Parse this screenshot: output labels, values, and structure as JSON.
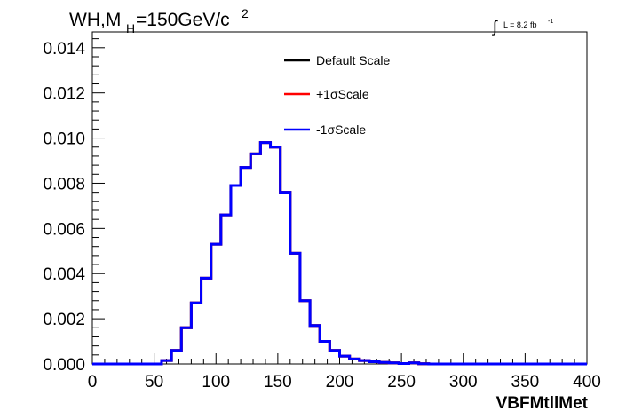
{
  "chart_data": {
    "type": "line",
    "title": {
      "main": "WH,M",
      "sub": "H",
      "rest": "=150GeV/c",
      "sup": "2"
    },
    "lumi": {
      "integral": "∫",
      "text": "L = 8.2 fb",
      "sup": "-1"
    },
    "xlabel": "VBFMtllMet",
    "ylabel": "",
    "xlim": [
      0,
      400
    ],
    "ylim": [
      0,
      0.0147
    ],
    "grid": false,
    "legend_position": "top-center",
    "xticks": [
      0,
      50,
      100,
      150,
      200,
      250,
      300,
      350,
      400
    ],
    "xtick_labels": [
      "0",
      "50",
      "100",
      "150",
      "200",
      "250",
      "300",
      "350",
      "400"
    ],
    "yticks": [
      0.0,
      0.002,
      0.004,
      0.006,
      0.008,
      0.01,
      0.012,
      0.014
    ],
    "ytick_labels": [
      "0.000",
      "0.002",
      "0.004",
      "0.006",
      "0.008",
      "0.010",
      "0.012",
      "0.014"
    ],
    "bin_edges": [
      0,
      8,
      16,
      24,
      32,
      40,
      48,
      56,
      64,
      72,
      80,
      88,
      96,
      104,
      112,
      120,
      128,
      136,
      144,
      152,
      160,
      168,
      176,
      184,
      192,
      200,
      208,
      216,
      224,
      232,
      240,
      248,
      256,
      264,
      272,
      280,
      288,
      296,
      304,
      312,
      320,
      328,
      336,
      344,
      352,
      360,
      368,
      376,
      384,
      392,
      400
    ],
    "series": [
      {
        "name": "Default Scale",
        "color": "#000000",
        "values": [
          0,
          0,
          0,
          0,
          0,
          0,
          0,
          0.00015,
          0.0006,
          0.0016,
          0.0027,
          0.0038,
          0.0053,
          0.0066,
          0.0079,
          0.0087,
          0.0093,
          0.0098,
          0.0096,
          0.0076,
          0.0049,
          0.0028,
          0.0017,
          0.001,
          0.0006,
          0.00035,
          0.00022,
          0.00015,
          0.0001,
          7e-05,
          5e-05,
          2e-05,
          5e-05,
          1e-05,
          0,
          0,
          0,
          0,
          0,
          0,
          0,
          0,
          0,
          0,
          0,
          0,
          0,
          0,
          0,
          0
        ]
      },
      {
        "name": "+1σScale",
        "color": "#ff0000",
        "values": [
          0,
          0,
          0,
          0,
          0,
          0,
          0,
          0.00015,
          0.0006,
          0.0016,
          0.0027,
          0.0038,
          0.0053,
          0.0066,
          0.0079,
          0.0087,
          0.0093,
          0.0098,
          0.0096,
          0.0076,
          0.0049,
          0.0028,
          0.0017,
          0.001,
          0.0006,
          0.00035,
          0.00022,
          0.00015,
          0.0001,
          7e-05,
          5e-05,
          2e-05,
          5e-05,
          1e-05,
          0,
          0,
          0,
          0,
          0,
          0,
          0,
          0,
          0,
          0,
          0,
          0,
          0,
          0,
          0,
          0
        ]
      },
      {
        "name": "-1σScale",
        "color": "#0000ff",
        "values": [
          0,
          0,
          0,
          0,
          0,
          0,
          0,
          0.00015,
          0.0006,
          0.0016,
          0.0027,
          0.0038,
          0.0053,
          0.0066,
          0.0079,
          0.0087,
          0.0093,
          0.0098,
          0.0096,
          0.0076,
          0.0049,
          0.0028,
          0.0017,
          0.001,
          0.0006,
          0.00035,
          0.00022,
          0.00015,
          0.0001,
          7e-05,
          5e-05,
          2e-05,
          5e-05,
          1e-05,
          0,
          0,
          0,
          0,
          0,
          0,
          0,
          0,
          0,
          0,
          0,
          0,
          0,
          0,
          0,
          0
        ]
      }
    ]
  }
}
